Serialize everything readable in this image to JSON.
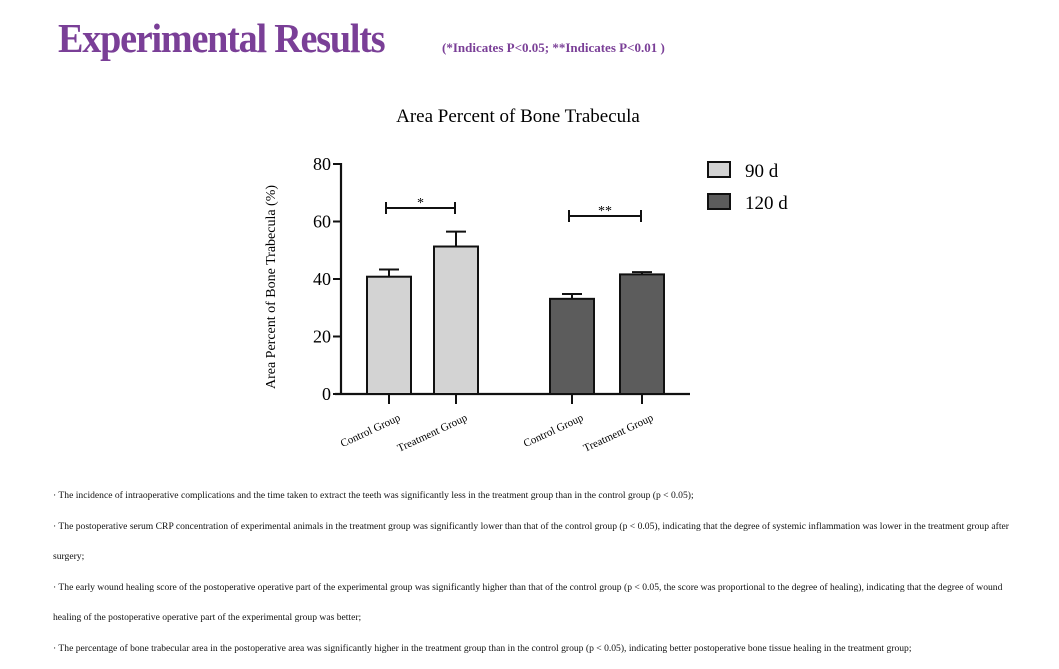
{
  "header": {
    "title": "Experimental Results",
    "note": "(*Indicates P<0.05;  **Indicates P<0.01 )"
  },
  "colors": {
    "title": "#7a3f97",
    "series_90d": "#d3d3d3",
    "series_120d": "#5c5c5c"
  },
  "chart_data": {
    "type": "bar",
    "title": "Area Percent of Bone Trabecula",
    "ylabel": "Area Percent of Bone Trabecula (%)",
    "xlabel": "",
    "ylim": [
      0,
      80
    ],
    "yticks": [
      0,
      20,
      40,
      60,
      80
    ],
    "legend_position": "top-right",
    "grid": false,
    "categories": [
      "Control Group",
      "Treatment Group"
    ],
    "series": [
      {
        "name": "90 d",
        "color": "#d3d3d3",
        "values": [
          40.8,
          51.3
        ],
        "error": [
          2.5,
          5.2
        ],
        "significance": "*"
      },
      {
        "name": "120 d",
        "color": "#5c5c5c",
        "values": [
          33.1,
          41.6
        ],
        "error": [
          1.7,
          0.8
        ],
        "significance": "**"
      }
    ]
  },
  "bullets": [
    "· The incidence of intraoperative complications and the time taken to extract the teeth was significantly less in the treatment group than in the control group (p < 0.05);",
    "· The postoperative serum CRP concentration of experimental animals in the treatment group was significantly lower than that of the control group (p < 0.05), indicating that the degree of systemic inflammation was lower in the treatment group after surgery;",
    "· The early wound healing score of the postoperative operative part of the experimental group was significantly higher than that of the control group (p < 0.05, the score was proportional to the degree of healing), indicating that the degree of wound healing of the postoperative operative part of the experimental group was better;",
    "· The percentage of bone trabecular area in the postoperative area was significantly higher in the treatment group than in the control group (p < 0.05), indicating better postoperative bone tissue healing in the treatment group;"
  ]
}
